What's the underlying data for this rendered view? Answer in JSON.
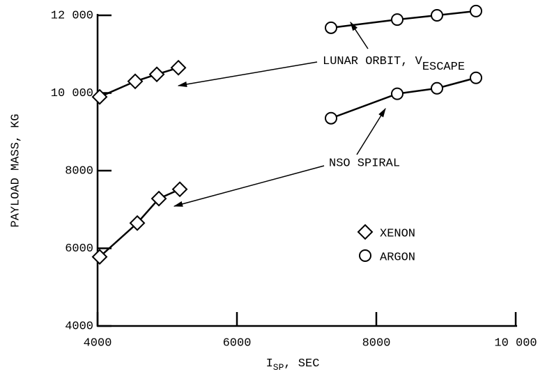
{
  "chart_data": {
    "type": "scatter",
    "x_label": {
      "main": "I",
      "sub": "SP",
      "rest": ", SEC"
    },
    "y_label": "PAYLOAD MASS, KG",
    "annotations": [
      {
        "main": "LUNAR ORBIT, V",
        "sub": "ESCAPE"
      },
      {
        "main": "NSO SPIRAL"
      }
    ],
    "xlim": [
      4000,
      10000
    ],
    "ylim": [
      4000,
      12000
    ],
    "xticks": [
      4000,
      6000,
      8000,
      {
        "value": 10000,
        "label": "10 000"
      }
    ],
    "yticks": [
      4000,
      6000,
      8000,
      {
        "value": 10000,
        "label": "10 000"
      },
      {
        "value": 12000,
        "label": "12 000"
      }
    ],
    "legend": "lower right",
    "series": [
      {
        "name": "XENON",
        "marker": "diamond",
        "color": "#000000",
        "curves": [
          {
            "x": [
              4030,
              4540,
              4850,
              5160
            ],
            "values": [
              9900,
              10300,
              10480,
              10650
            ]
          },
          {
            "x": [
              4030,
              4570,
              4880,
              5180
            ],
            "values": [
              5780,
              6650,
              7280,
              7520
            ]
          }
        ]
      },
      {
        "name": "ARGON",
        "marker": "circle",
        "color": "#000000",
        "curves": [
          {
            "x": [
              7350,
              8300,
              8870,
              9430
            ],
            "values": [
              11680,
              11890,
              12000,
              12110
            ]
          },
          {
            "x": [
              7350,
              8300,
              8870,
              9430
            ],
            "values": [
              9350,
              9980,
              10120,
              10390
            ]
          }
        ]
      }
    ]
  }
}
